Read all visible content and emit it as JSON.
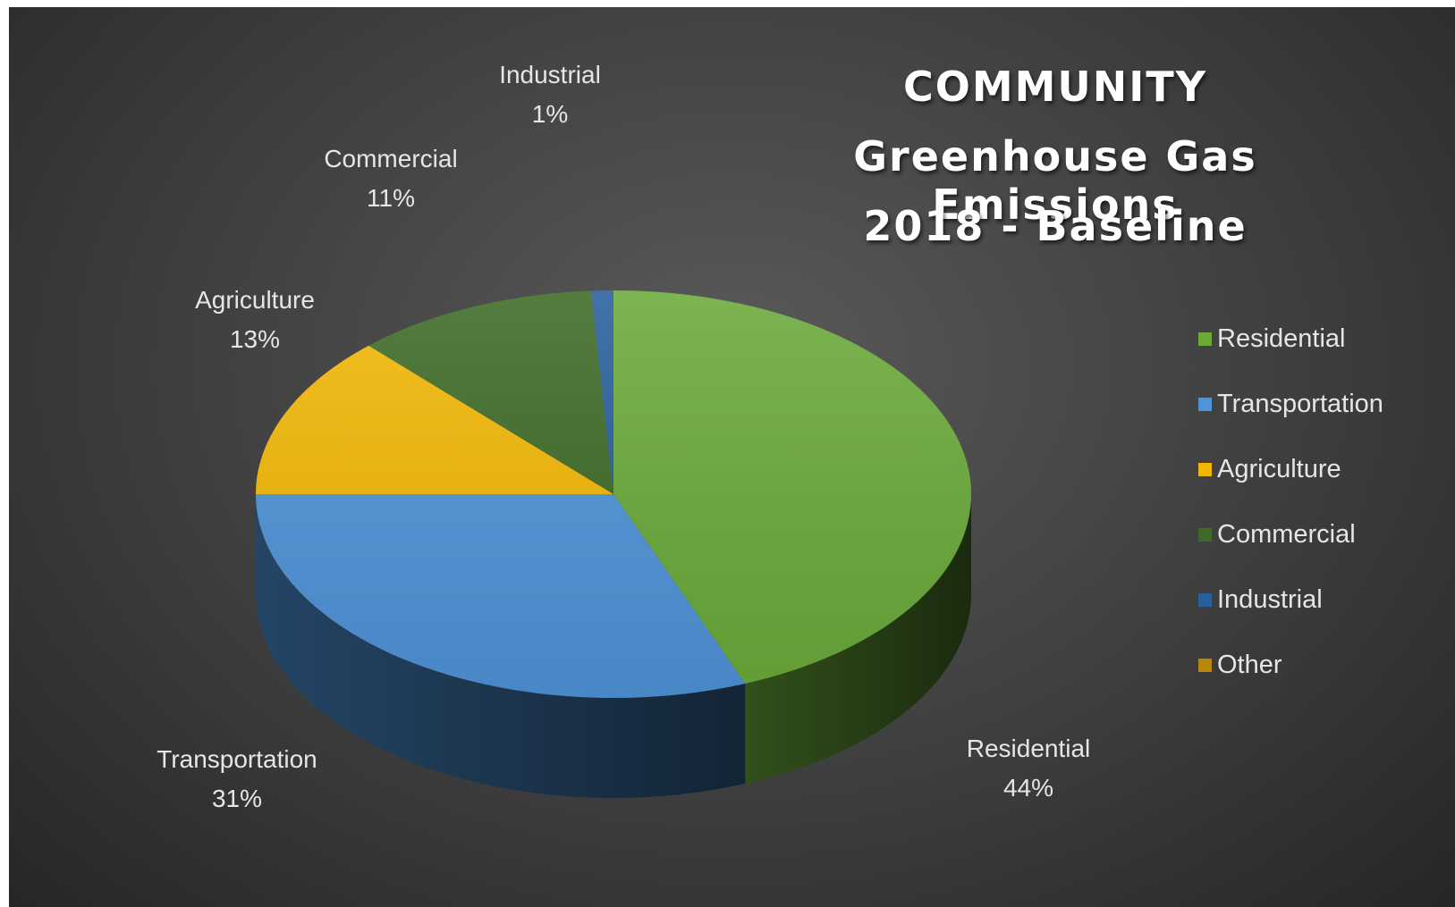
{
  "chart_data": {
    "type": "pie",
    "title_lines": [
      "COMMUNITY",
      "Greenhouse Gas Emissions",
      "2018 - Baseline"
    ],
    "legend_placement": "right",
    "slices": [
      {
        "label": "Residential",
        "value": 44,
        "value_label": "44%",
        "color": "#6aaa3a"
      },
      {
        "label": "Transportation",
        "value": 31,
        "value_label": "31%",
        "color": "#4f93d8"
      },
      {
        "label": "Agriculture",
        "value": 13,
        "value_label": "13%",
        "color": "#f2b705"
      },
      {
        "label": "Commercial",
        "value": 11,
        "value_label": "11%",
        "color": "#3e6b26"
      },
      {
        "label": "Industrial",
        "value": 1,
        "value_label": "1%",
        "color": "#2a5f9e"
      },
      {
        "label": "Other",
        "value": 0,
        "value_label": "",
        "color": "#b8860b"
      }
    ]
  }
}
